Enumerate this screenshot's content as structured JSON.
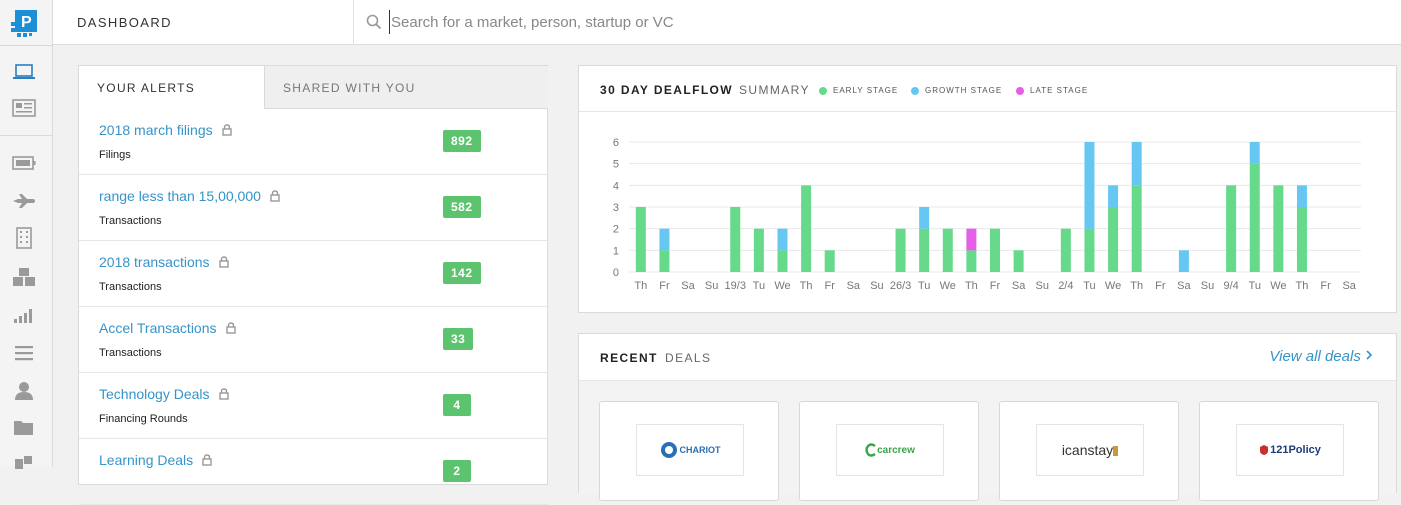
{
  "app": {
    "brand_letter": "P",
    "brand_color": "#1d8fd6"
  },
  "topbar": {
    "title": "DASHBOARD",
    "search_placeholder": "Search for a market, person, startup or VC"
  },
  "sidebar": {
    "items": [
      {
        "name": "dashboard",
        "icon": "laptop-icon"
      },
      {
        "name": "news",
        "icon": "newspaper-icon"
      },
      {
        "name": "battery",
        "icon": "battery-icon"
      },
      {
        "name": "flights",
        "icon": "airplane-icon"
      },
      {
        "name": "companies",
        "icon": "building-icon"
      },
      {
        "name": "products",
        "icon": "cubes-icon"
      },
      {
        "name": "signals",
        "icon": "signal-bars-icon"
      },
      {
        "name": "lists",
        "icon": "list-icon"
      },
      {
        "name": "people",
        "icon": "user-icon"
      },
      {
        "name": "folders",
        "icon": "folder-icon"
      },
      {
        "name": "more",
        "icon": "puzzle-icon"
      }
    ]
  },
  "alerts": {
    "tabs": [
      "YOUR ALERTS",
      "SHARED WITH YOU"
    ],
    "rows": [
      {
        "name": "2018 march filings",
        "type": "Filings",
        "count": "892"
      },
      {
        "name": "range less than 15,00,000",
        "type": "Transactions",
        "count": "582"
      },
      {
        "name": "2018 transactions",
        "type": "Transactions",
        "count": "142"
      },
      {
        "name": "Accel Transactions",
        "type": "Transactions",
        "count": "33"
      },
      {
        "name": "Technology Deals",
        "type": "Financing Rounds",
        "count": "4"
      },
      {
        "name": "Learning Deals",
        "type": "",
        "count": "2"
      }
    ]
  },
  "dealflow": {
    "title_strong": "30 DAY DEALFLOW",
    "title_light": "SUMMARY",
    "legend": [
      {
        "label": "EARLY STAGE",
        "color": "#66d98a"
      },
      {
        "label": "GROWTH STAGE",
        "color": "#66c8f2"
      },
      {
        "label": "LATE STAGE",
        "color": "#e55ee8"
      }
    ]
  },
  "chart_data": {
    "type": "bar",
    "stacked": true,
    "categories": [
      "Th",
      "Fr",
      "Sa",
      "Su",
      "19/3",
      "Tu",
      "We",
      "Th",
      "Fr",
      "Sa",
      "Su",
      "26/3",
      "Tu",
      "We",
      "Th",
      "Fr",
      "Sa",
      "Su",
      "2/4",
      "Tu",
      "We",
      "Th",
      "Fr",
      "Sa",
      "Su",
      "9/4",
      "Tu",
      "We",
      "Th",
      "Fr",
      "Sa"
    ],
    "series": [
      {
        "name": "EARLY STAGE",
        "values": [
          3,
          1,
          0,
          0,
          3,
          2,
          1,
          4,
          1,
          0,
          0,
          2,
          2,
          2,
          1,
          2,
          1,
          0,
          2,
          2,
          3,
          4,
          0,
          0,
          0,
          4,
          5,
          4,
          3,
          0,
          0
        ]
      },
      {
        "name": "GROWTH STAGE",
        "values": [
          0,
          1,
          0,
          0,
          0,
          0,
          1,
          0,
          0,
          0,
          0,
          0,
          1,
          0,
          0,
          0,
          0,
          0,
          0,
          4,
          1,
          2,
          0,
          1,
          0,
          0,
          1,
          0,
          1,
          0,
          0
        ]
      },
      {
        "name": "LATE STAGE",
        "values": [
          0,
          0,
          0,
          0,
          0,
          0,
          0,
          0,
          0,
          0,
          0,
          0,
          0,
          0,
          1,
          0,
          0,
          0,
          0,
          0,
          0,
          0,
          0,
          0,
          0,
          0,
          0,
          0,
          0,
          0,
          0
        ]
      }
    ],
    "yticks": [
      "0",
      "1",
      "2",
      "3",
      "4",
      "5",
      "6"
    ],
    "ylim": [
      0,
      6
    ],
    "grid": true
  },
  "recent": {
    "title_strong": "RECENT",
    "title_light": "DEALS",
    "view_all": "View all deals",
    "deals": [
      {
        "company": "CHARIOT",
        "color": "#2a6fb5"
      },
      {
        "company": "carcrew",
        "color": "#3aa648"
      },
      {
        "company": "icanstay",
        "color": "#333333"
      },
      {
        "company": "121Policy",
        "color": "#1f3c7a"
      }
    ]
  }
}
